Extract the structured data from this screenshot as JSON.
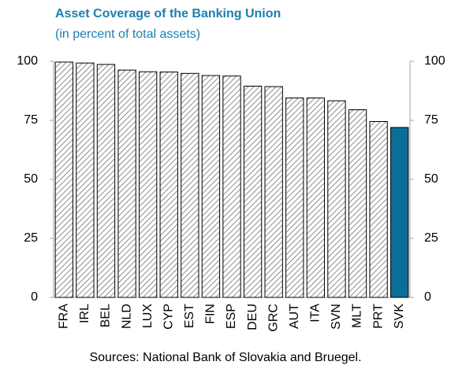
{
  "chart_data": {
    "type": "bar",
    "title": "Asset Coverage of the Banking Union",
    "subtitle": "(in percent of total assets)",
    "source": "Sources: National Bank of Slovakia and Bruegel.",
    "categories": [
      "FRA",
      "IRL",
      "BEL",
      "NLD",
      "LUX",
      "CYP",
      "EST",
      "FIN",
      "ESP",
      "DEU",
      "GRC",
      "AUT",
      "ITA",
      "SVN",
      "MLT",
      "PRT",
      "SVK"
    ],
    "values": [
      99.7,
      99.3,
      98.7,
      96.3,
      95.6,
      95.5,
      94.9,
      94.0,
      93.8,
      89.5,
      89.3,
      84.5,
      84.5,
      83.3,
      79.5,
      74.5,
      72.0
    ],
    "colors": [
      "#ffffff",
      "#ffffff",
      "#ffffff",
      "#ffffff",
      "#ffffff",
      "#ffffff",
      "#ffffff",
      "#ffffff",
      "#ffffff",
      "#ffffff",
      "#ffffff",
      "#ffffff",
      "#ffffff",
      "#ffffff",
      "#ffffff",
      "#ffffff",
      "#0b6e99"
    ],
    "hatched": [
      true,
      true,
      true,
      true,
      true,
      true,
      true,
      true,
      true,
      true,
      true,
      true,
      true,
      true,
      true,
      true,
      false
    ],
    "ylim": [
      0,
      100
    ],
    "yticks": [
      0,
      25,
      50,
      75,
      100
    ],
    "y2lim": [
      0,
      100
    ],
    "y2ticks": [
      0,
      25,
      50,
      75,
      100
    ],
    "grid": false
  }
}
